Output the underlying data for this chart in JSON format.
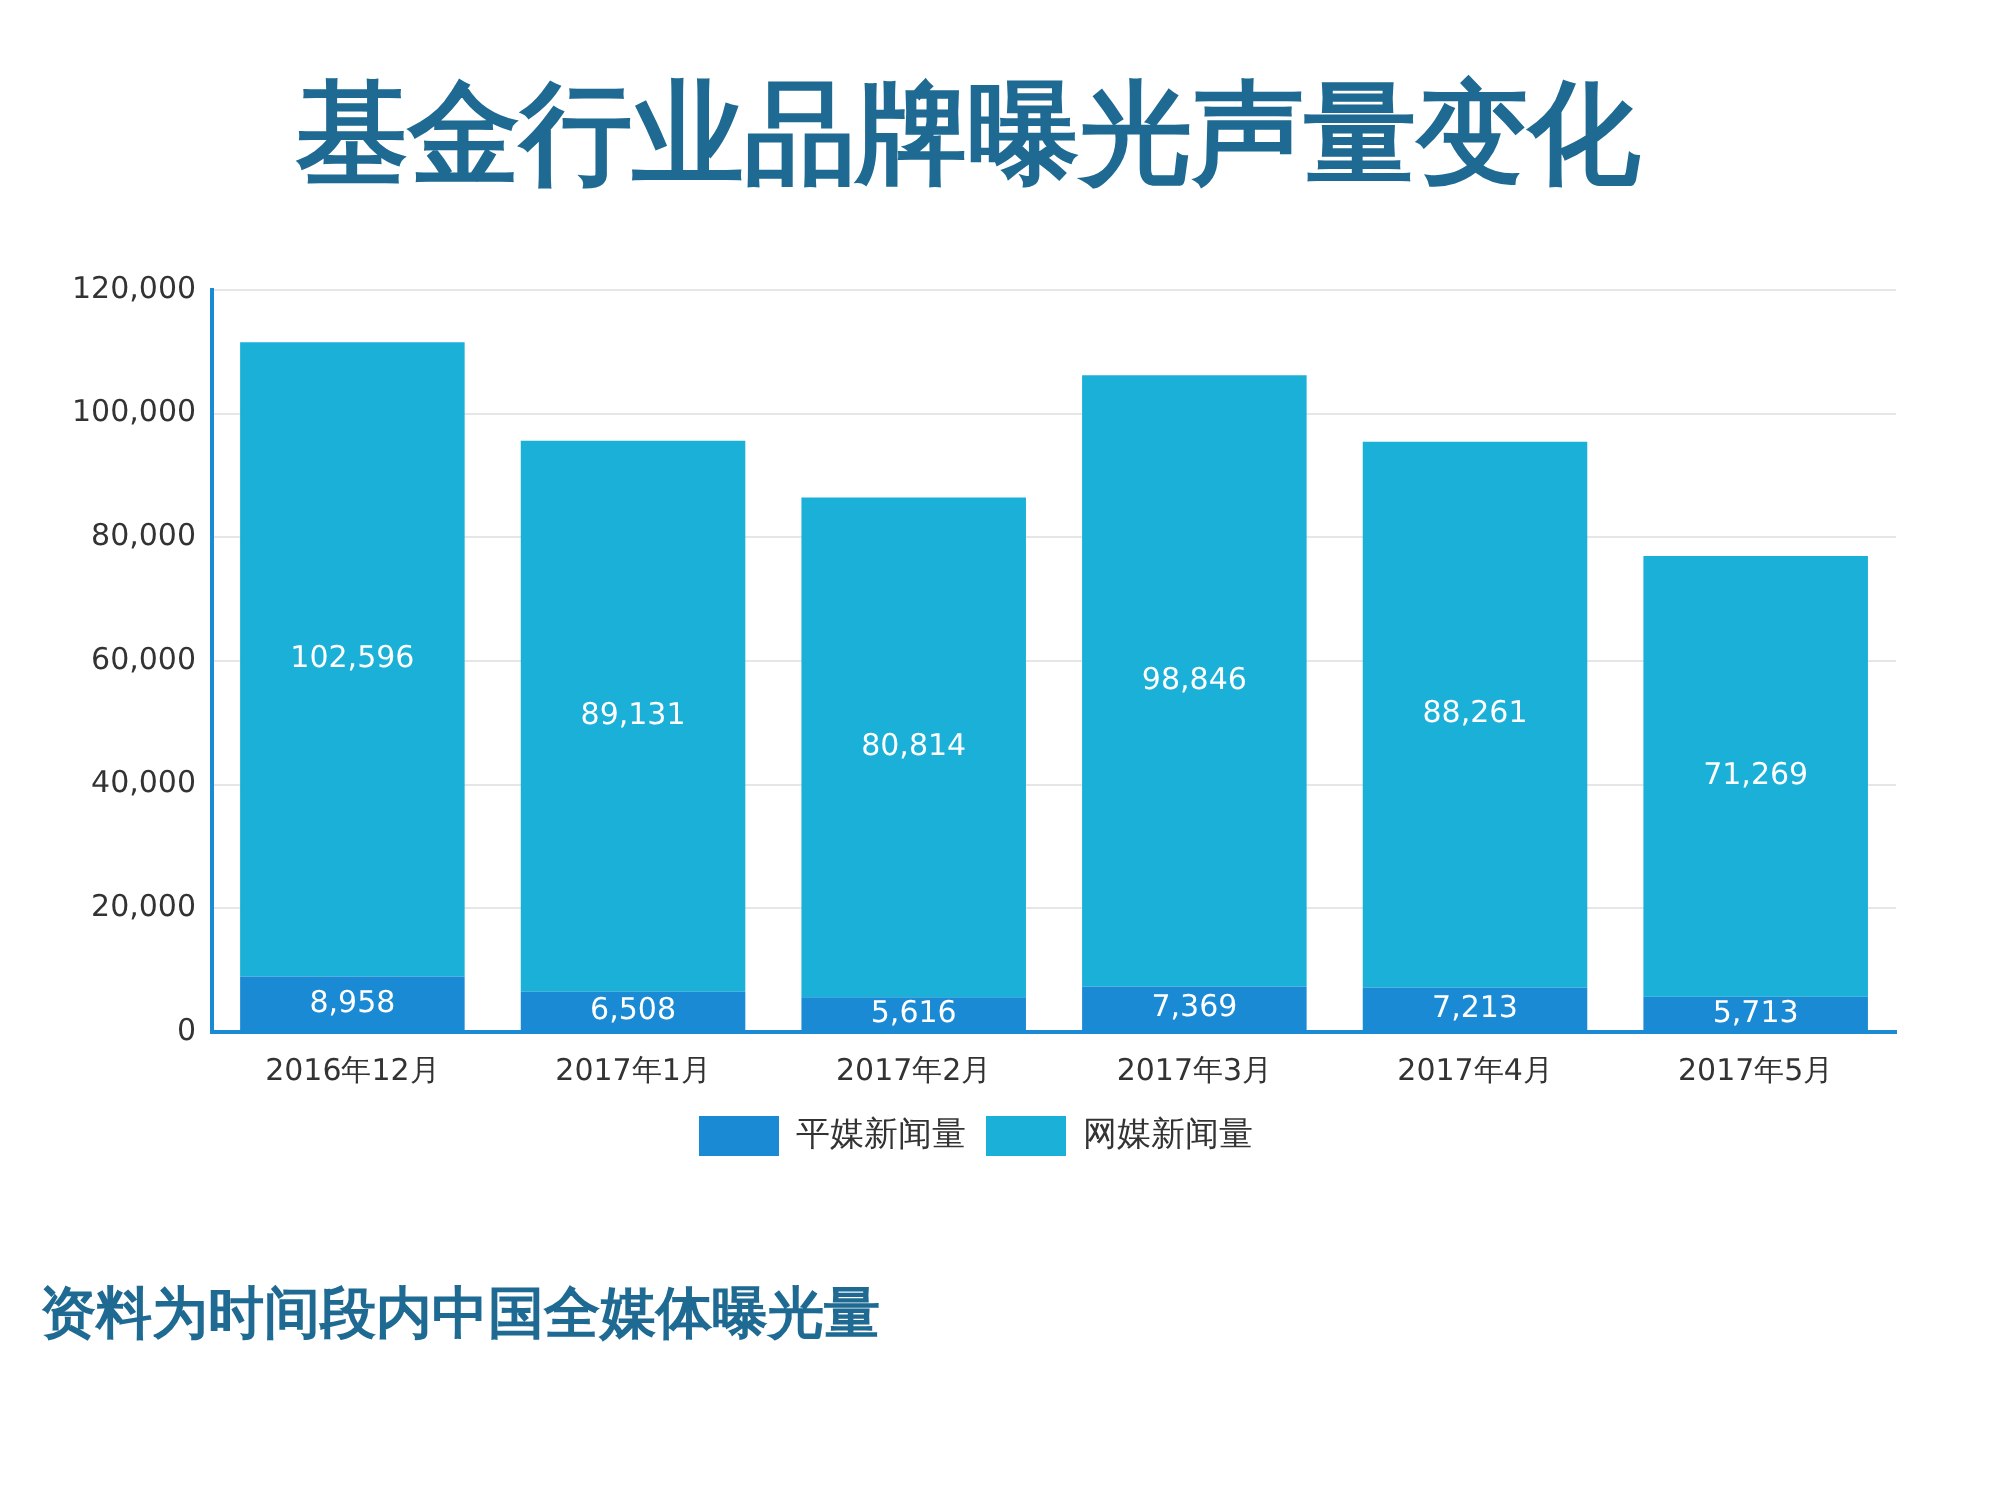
{
  "chart_data": {
    "type": "bar",
    "title": "基金行业品牌曝光声量变化",
    "categories": [
      "2016年12月",
      "2017年1月",
      "2017年2月",
      "2017年3月",
      "2017年4月",
      "2017年5月"
    ],
    "series": [
      {
        "name": "平媒新闻量",
        "color": "#1a8ad4",
        "values": [
          8958,
          6508,
          5616,
          7369,
          7213,
          5713
        ],
        "value_labels": [
          "8,958",
          "6,508",
          "5,616",
          "7,369",
          "7,213",
          "5,713"
        ]
      },
      {
        "name": "网媒新闻量",
        "color": "#1ab0d8",
        "values": [
          102596,
          89131,
          80814,
          98846,
          88261,
          71269
        ],
        "value_labels": [
          "102,596",
          "89,131",
          "80,814",
          "98,846",
          "88,261",
          "71,269"
        ]
      }
    ],
    "stacked": true,
    "ylim": [
      0,
      120000
    ],
    "yticks": [
      {
        "value": 0,
        "label": "0"
      },
      {
        "value": 20000,
        "label": "20,000"
      },
      {
        "value": 40000,
        "label": "40,000"
      },
      {
        "value": 60000,
        "label": "60,000"
      },
      {
        "value": 80000,
        "label": "80,000"
      },
      {
        "value": 100000,
        "label": "100,000"
      },
      {
        "value": 120000,
        "label": "120,000"
      }
    ],
    "grid": "y",
    "legend": "bottom",
    "annotations": [
      "资料为时间段内中国全媒体曝光量"
    ]
  }
}
